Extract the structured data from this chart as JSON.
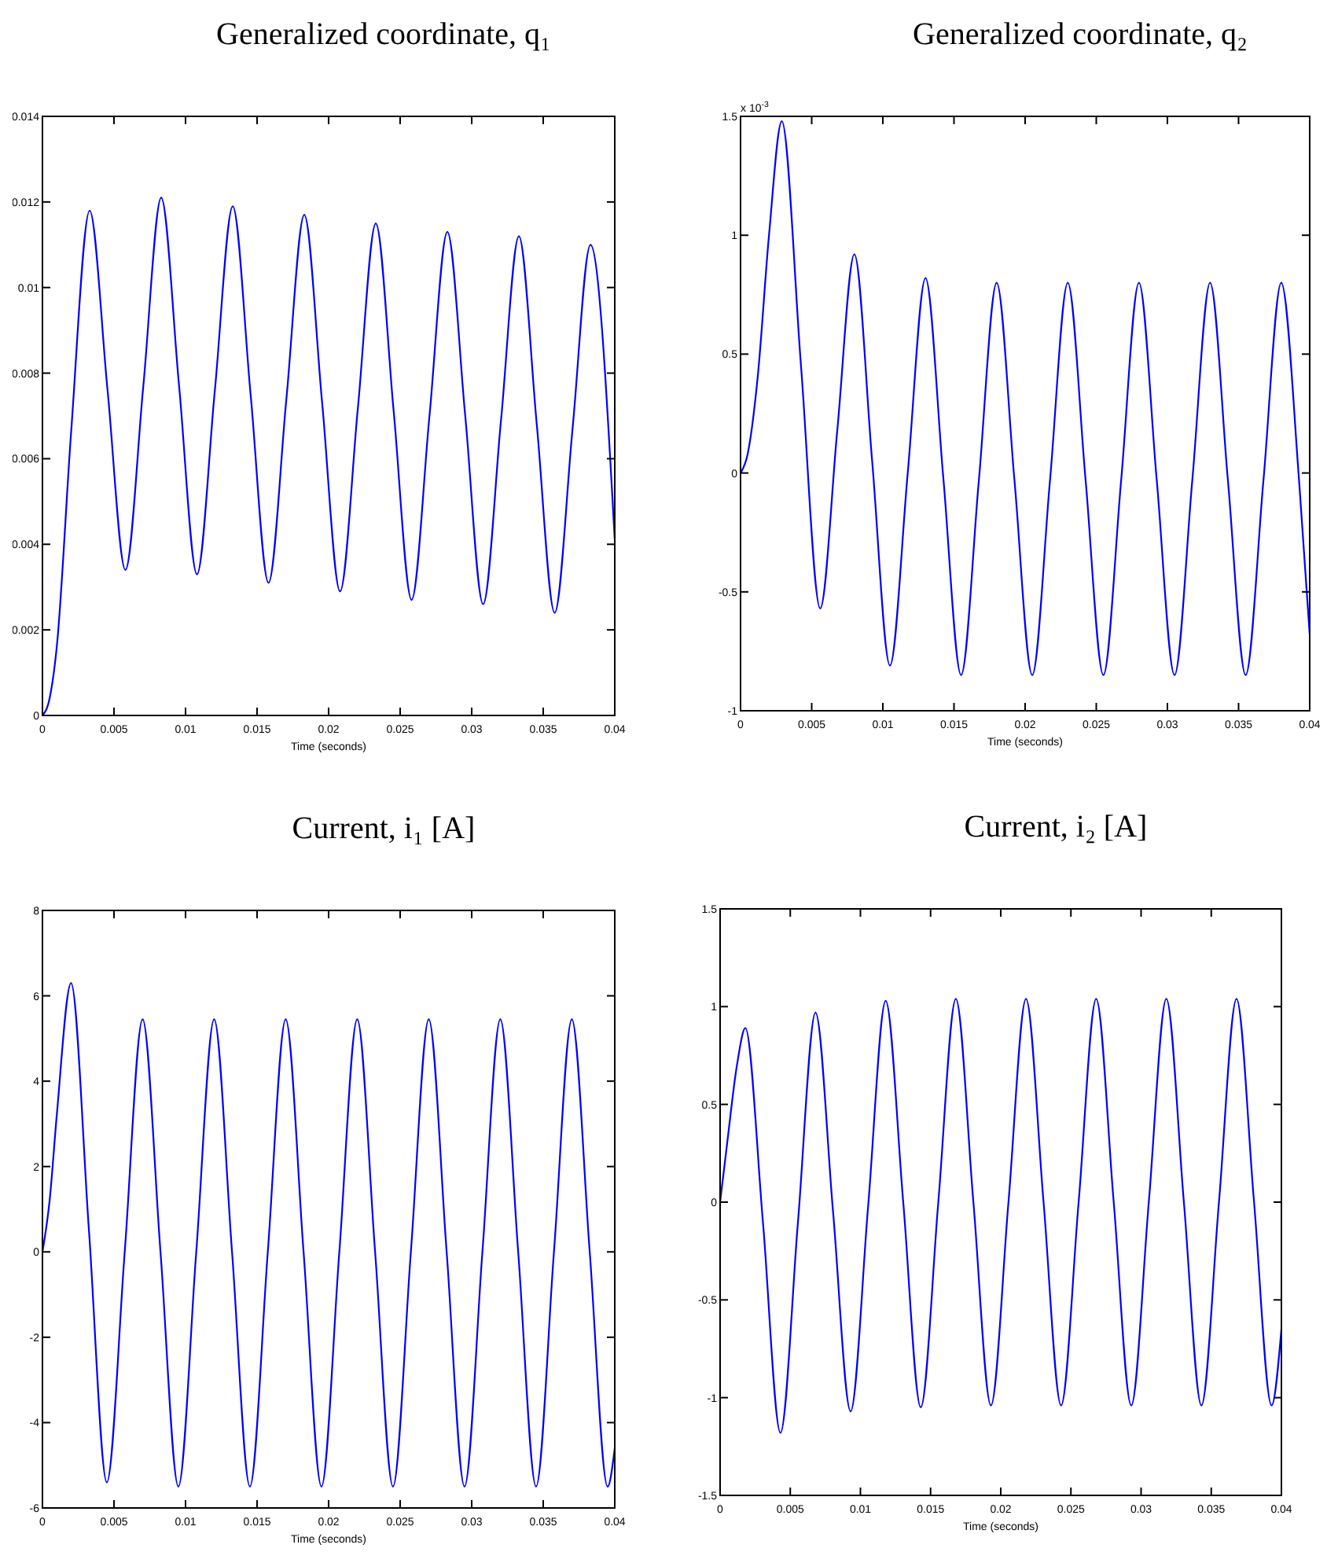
{
  "chart_data": [
    {
      "type": "line",
      "title": "Generalized coordinate,  q₁",
      "xlabel": "Time (seconds)",
      "xlim": [
        0,
        0.04
      ],
      "xticks": [
        0,
        0.005,
        0.01,
        0.015,
        0.02,
        0.025,
        0.03,
        0.035,
        0.04
      ],
      "ylim": [
        0,
        0.014
      ],
      "yticks": [
        0,
        0.002,
        0.004,
        0.006,
        0.008,
        0.01,
        0.012,
        0.014
      ],
      "grid": false,
      "line_style": "solid",
      "series": [
        {
          "color": "#0000ff",
          "x": [
            0,
            0.0005,
            0.001,
            0.002,
            0.0033,
            0.00455,
            0.0058,
            0.00705,
            0.0083,
            0.00955,
            0.0108,
            0.01205,
            0.0133,
            0.01455,
            0.0158,
            0.01705,
            0.0183,
            0.01955,
            0.0208,
            0.02205,
            0.0233,
            0.02455,
            0.0258,
            0.02705,
            0.0283,
            0.02955,
            0.0308,
            0.03205,
            0.0333,
            0.03455,
            0.0358,
            0.03705,
            0.0383,
            0.04
          ],
          "values": [
            0,
            0.0004,
            0.0016,
            0.0066,
            0.0118,
            0.0076,
            0.0034,
            0.0077,
            0.0121,
            0.0077,
            0.0033,
            0.0076,
            0.0119,
            0.0075,
            0.0031,
            0.0074,
            0.0117,
            0.0073,
            0.0029,
            0.0072,
            0.0115,
            0.0071,
            0.0027,
            0.007,
            0.0113,
            0.007,
            0.0026,
            0.0069,
            0.0112,
            0.0068,
            0.0024,
            0.0067,
            0.011,
            0.0041
          ]
        }
      ]
    },
    {
      "type": "line",
      "title": "Generalized coordinate,  q₂",
      "xlabel": "Time (seconds)",
      "annotations": [
        "x 10$^{-3}$"
      ],
      "xlim": [
        0,
        0.04
      ],
      "xticks": [
        0,
        0.005,
        0.01,
        0.015,
        0.02,
        0.025,
        0.03,
        0.035,
        0.04
      ],
      "ylim": [
        -1,
        1.5
      ],
      "yticks": [
        -1,
        -0.5,
        0,
        0.5,
        1,
        1.5
      ],
      "grid": false,
      "line_style": "solid",
      "series": [
        {
          "color": "#0000ff",
          "x": [
            0,
            0.0005,
            0.0012,
            0.002,
            0.0029,
            0.00425,
            0.0056,
            0.0068,
            0.008,
            0.00925,
            0.0105,
            0.01175,
            0.013,
            0.01425,
            0.0155,
            0.01675,
            0.018,
            0.01925,
            0.0205,
            0.02175,
            0.023,
            0.02425,
            0.0255,
            0.02675,
            0.028,
            0.02925,
            0.0305,
            0.03175,
            0.033,
            0.03425,
            0.0355,
            0.03675,
            0.038,
            0.03925,
            0.04
          ],
          "values": [
            0,
            0.08,
            0.4,
            1.0,
            1.48,
            0.45,
            -0.57,
            0.18,
            0.92,
            0.05,
            -0.81,
            0,
            0.82,
            -0.02,
            -0.85,
            -0.03,
            0.8,
            -0.03,
            -0.85,
            -0.03,
            0.8,
            -0.03,
            -0.85,
            -0.03,
            0.8,
            -0.03,
            -0.85,
            -0.03,
            0.8,
            -0.03,
            -0.85,
            -0.03,
            0.8,
            -0.03,
            -0.68
          ]
        }
      ]
    },
    {
      "type": "line",
      "title": "Current,  i₁  [A]",
      "xlabel": "Time (seconds)",
      "xlim": [
        0,
        0.04
      ],
      "xticks": [
        0,
        0.005,
        0.01,
        0.015,
        0.02,
        0.025,
        0.03,
        0.035,
        0.04
      ],
      "ylim": [
        -6,
        8
      ],
      "yticks": [
        -6,
        -4,
        -2,
        0,
        2,
        4,
        6,
        8
      ],
      "grid": false,
      "line_style": "solid",
      "series": [
        {
          "color": "#0000ff",
          "x": [
            0,
            0.0005,
            0.001,
            0.002,
            0.00325,
            0.0045,
            0.00575,
            0.007,
            0.00825,
            0.0095,
            0.01075,
            0.012,
            0.01325,
            0.0145,
            0.01575,
            0.017,
            0.01825,
            0.0195,
            0.02075,
            0.022,
            0.02325,
            0.0245,
            0.02575,
            0.027,
            0.02825,
            0.0295,
            0.03075,
            0.032,
            0.03325,
            0.0345,
            0.03575,
            0.037,
            0.03825,
            0.0395,
            0.04
          ],
          "values": [
            0,
            1.2,
            3.2,
            6.3,
            0.5,
            -5.4,
            0,
            5.45,
            0,
            -5.5,
            0,
            5.45,
            0,
            -5.5,
            0,
            5.45,
            0,
            -5.5,
            0,
            5.45,
            0,
            -5.5,
            0,
            5.45,
            0,
            -5.5,
            0,
            5.45,
            0,
            -5.5,
            0,
            5.45,
            0,
            -5.5,
            -4.6
          ]
        }
      ]
    },
    {
      "type": "line",
      "title": "Current,  i₂  [A]",
      "xlabel": "Time (seconds)",
      "xlim": [
        0,
        0.04
      ],
      "xticks": [
        0,
        0.005,
        0.01,
        0.015,
        0.02,
        0.025,
        0.03,
        0.035,
        0.04
      ],
      "ylim": [
        -1.5,
        1.5
      ],
      "yticks": [
        -1.5,
        -1,
        -0.5,
        0,
        0.5,
        1,
        1.5
      ],
      "grid": false,
      "line_style": "solid",
      "series": [
        {
          "color": "#0000ff",
          "x": [
            0,
            0.0005,
            0.0012,
            0.0018,
            0.00305,
            0.0043,
            0.00555,
            0.0068,
            0.00805,
            0.0093,
            0.01055,
            0.0118,
            0.01305,
            0.0143,
            0.01555,
            0.0168,
            0.01805,
            0.0193,
            0.02055,
            0.0218,
            0.02305,
            0.0243,
            0.02555,
            0.0268,
            0.02805,
            0.0293,
            0.03055,
            0.0318,
            0.03305,
            0.0343,
            0.03555,
            0.0368,
            0.03805,
            0.0393,
            0.04
          ],
          "values": [
            0,
            0.3,
            0.7,
            0.89,
            -0.1,
            -1.18,
            -0.1,
            0.97,
            -0.05,
            -1.07,
            -0.02,
            1.03,
            0,
            -1.05,
            0,
            1.04,
            0,
            -1.04,
            0,
            1.04,
            0,
            -1.04,
            0,
            1.04,
            0,
            -1.04,
            0,
            1.04,
            0,
            -1.04,
            0,
            1.04,
            0,
            -1.04,
            -0.65
          ]
        }
      ]
    }
  ]
}
